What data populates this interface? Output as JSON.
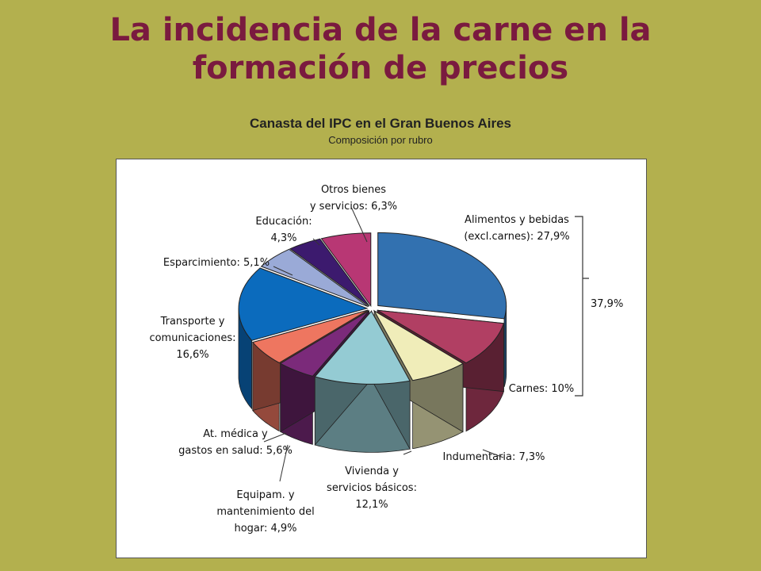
{
  "slide": {
    "title_line1": "La incidencia de la carne en la",
    "title_line2": "formación de precios"
  },
  "chart_data": {
    "type": "pie",
    "title": "Canasta del IPC en el Gran Buenos Aires",
    "subtitle": "Composición por rubro",
    "slices": [
      {
        "label_lines": [
          "Alimentos y bebidas",
          "(excl.carnes): 27,9%"
        ],
        "value": 27.9,
        "color": "#3271b0"
      },
      {
        "label_lines": [
          "Carnes: 10%"
        ],
        "value": 10.0,
        "color": "#b13f63"
      },
      {
        "label_lines": [
          "Indumentaria: 7,3%"
        ],
        "value": 7.3,
        "color": "#f0edb9"
      },
      {
        "label_lines": [
          "Vivienda y",
          "servicios básicos:",
          "12,1%"
        ],
        "value": 12.1,
        "color": "#94cbd3"
      },
      {
        "label_lines": [
          "Equipam. y",
          "mantenimiento del",
          "hogar: 4,9%"
        ],
        "value": 4.9,
        "color": "#7b2a7a"
      },
      {
        "label_lines": [
          "At. médica y",
          "gastos en salud: 5,6%"
        ],
        "value": 5.6,
        "color": "#ee7660"
      },
      {
        "label_lines": [
          "Transporte y",
          "comunicaciones:",
          "16,6%"
        ],
        "value": 16.6,
        "color": "#0b6bbd"
      },
      {
        "label_lines": [
          "Esparcimiento: 5,1%"
        ],
        "value": 5.1,
        "color": "#9aaad7"
      },
      {
        "label_lines": [
          "Educación:",
          "4,3%"
        ],
        "value": 4.3,
        "color": "#3c1a6e"
      },
      {
        "label_lines": [
          "Otros bienes",
          "y servicios: 6,3%"
        ],
        "value": 6.3,
        "color": "#b83774"
      }
    ],
    "bracket_label": "37,9%",
    "legend": "none"
  }
}
